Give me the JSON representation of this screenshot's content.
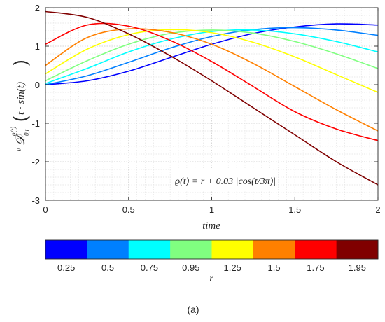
{
  "chart_data": {
    "type": "line",
    "xlabel": "time",
    "ylabel": "𝒟",
    "ylabel_prefix": "v",
    "ylabel_superscript": "ϱ(t)",
    "ylabel_subscript": "0,t",
    "ylabel_argument": "t · sin(t)",
    "annotation": "ϱ(t) = r + 0.03 |cos(t/3π)|",
    "xlim": [
      0,
      2
    ],
    "ylim": [
      -3,
      2
    ],
    "xticks": [
      0,
      0.5,
      1,
      1.5,
      2
    ],
    "xtick_labels": [
      "0",
      "0.5",
      "1",
      "1.5",
      "2"
    ],
    "yticks": [
      -3,
      -2,
      -1,
      0,
      1,
      2
    ],
    "ytick_labels": [
      "-3",
      "-2",
      "-1",
      "0",
      "1",
      "2"
    ],
    "grid": "dotted major and minor",
    "x": [
      0,
      0.25,
      0.5,
      0.75,
      1,
      1.25,
      1.5,
      1.75,
      2
    ],
    "series": [
      {
        "color": "#0000ff",
        "values": [
          0.0,
          0.1,
          0.35,
          0.7,
          1.05,
          1.33,
          1.5,
          1.58,
          1.55
        ]
      },
      {
        "color": "#0080ff",
        "values": [
          0.0,
          0.23,
          0.58,
          0.95,
          1.25,
          1.43,
          1.48,
          1.42,
          1.28
        ]
      },
      {
        "color": "#00ffff",
        "values": [
          0.03,
          0.42,
          0.85,
          1.18,
          1.38,
          1.42,
          1.32,
          1.12,
          0.85
        ]
      },
      {
        "color": "#80ff80",
        "values": [
          0.1,
          0.62,
          1.05,
          1.33,
          1.42,
          1.34,
          1.12,
          0.8,
          0.42
        ]
      },
      {
        "color": "#ffff00",
        "values": [
          0.28,
          0.92,
          1.3,
          1.43,
          1.35,
          1.1,
          0.72,
          0.26,
          -0.2
        ]
      },
      {
        "color": "#ff8000",
        "values": [
          0.5,
          1.22,
          1.45,
          1.36,
          1.05,
          0.55,
          -0.05,
          -0.65,
          -1.2
        ]
      },
      {
        "color": "#ff0000",
        "values": [
          1.05,
          1.55,
          1.52,
          1.15,
          0.6,
          -0.05,
          -0.7,
          -1.15,
          -1.45
        ]
      },
      {
        "color": "#800000",
        "values": [
          1.9,
          1.75,
          1.32,
          0.75,
          0.1,
          -0.6,
          -1.3,
          -2.0,
          -2.6
        ]
      }
    ],
    "colorbar": {
      "label": "r",
      "colors": [
        "#0000ff",
        "#0080ff",
        "#00ffff",
        "#80ff80",
        "#ffff00",
        "#ff8000",
        "#ff0000",
        "#800000"
      ],
      "tick_labels": [
        "0.25",
        "0.5",
        "0.75",
        "0.95",
        "1.25",
        "1.5",
        "1.75",
        "1.95"
      ]
    }
  },
  "caption": "(a)"
}
